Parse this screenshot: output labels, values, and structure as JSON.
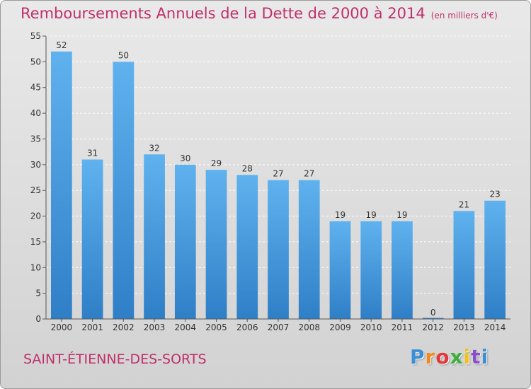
{
  "chart_data": {
    "type": "bar",
    "title": "Remboursements Annuels de la Dette de 2000 à 2014",
    "unit": "(en milliers d'€)",
    "categories": [
      "2000",
      "2001",
      "2002",
      "2003",
      "2004",
      "2005",
      "2006",
      "2007",
      "2008",
      "2009",
      "2010",
      "2011",
      "2012",
      "2013",
      "2014"
    ],
    "values": [
      52,
      31,
      50,
      32,
      30,
      29,
      28,
      27,
      27,
      19,
      19,
      19,
      0,
      21,
      23
    ],
    "ylim": [
      0,
      55
    ],
    "yticks": [
      0,
      5,
      10,
      15,
      20,
      25,
      30,
      35,
      40,
      45,
      50,
      55
    ],
    "grid": true,
    "bar_color": "#4a9de0",
    "xlabel": "",
    "ylabel": ""
  },
  "commune": "SAINT-ÉTIENNE-DES-SORTS",
  "logo": {
    "text": "Proxiti",
    "letter_colors": [
      "#3a8fd6",
      "#f08a1c",
      "#e23a3a",
      "#3fae3f",
      "#f2c21b",
      "#8a4fc8",
      "#3a8fd6"
    ]
  },
  "colors": {
    "accent": "#c0306a",
    "grid": "#ffffff"
  }
}
